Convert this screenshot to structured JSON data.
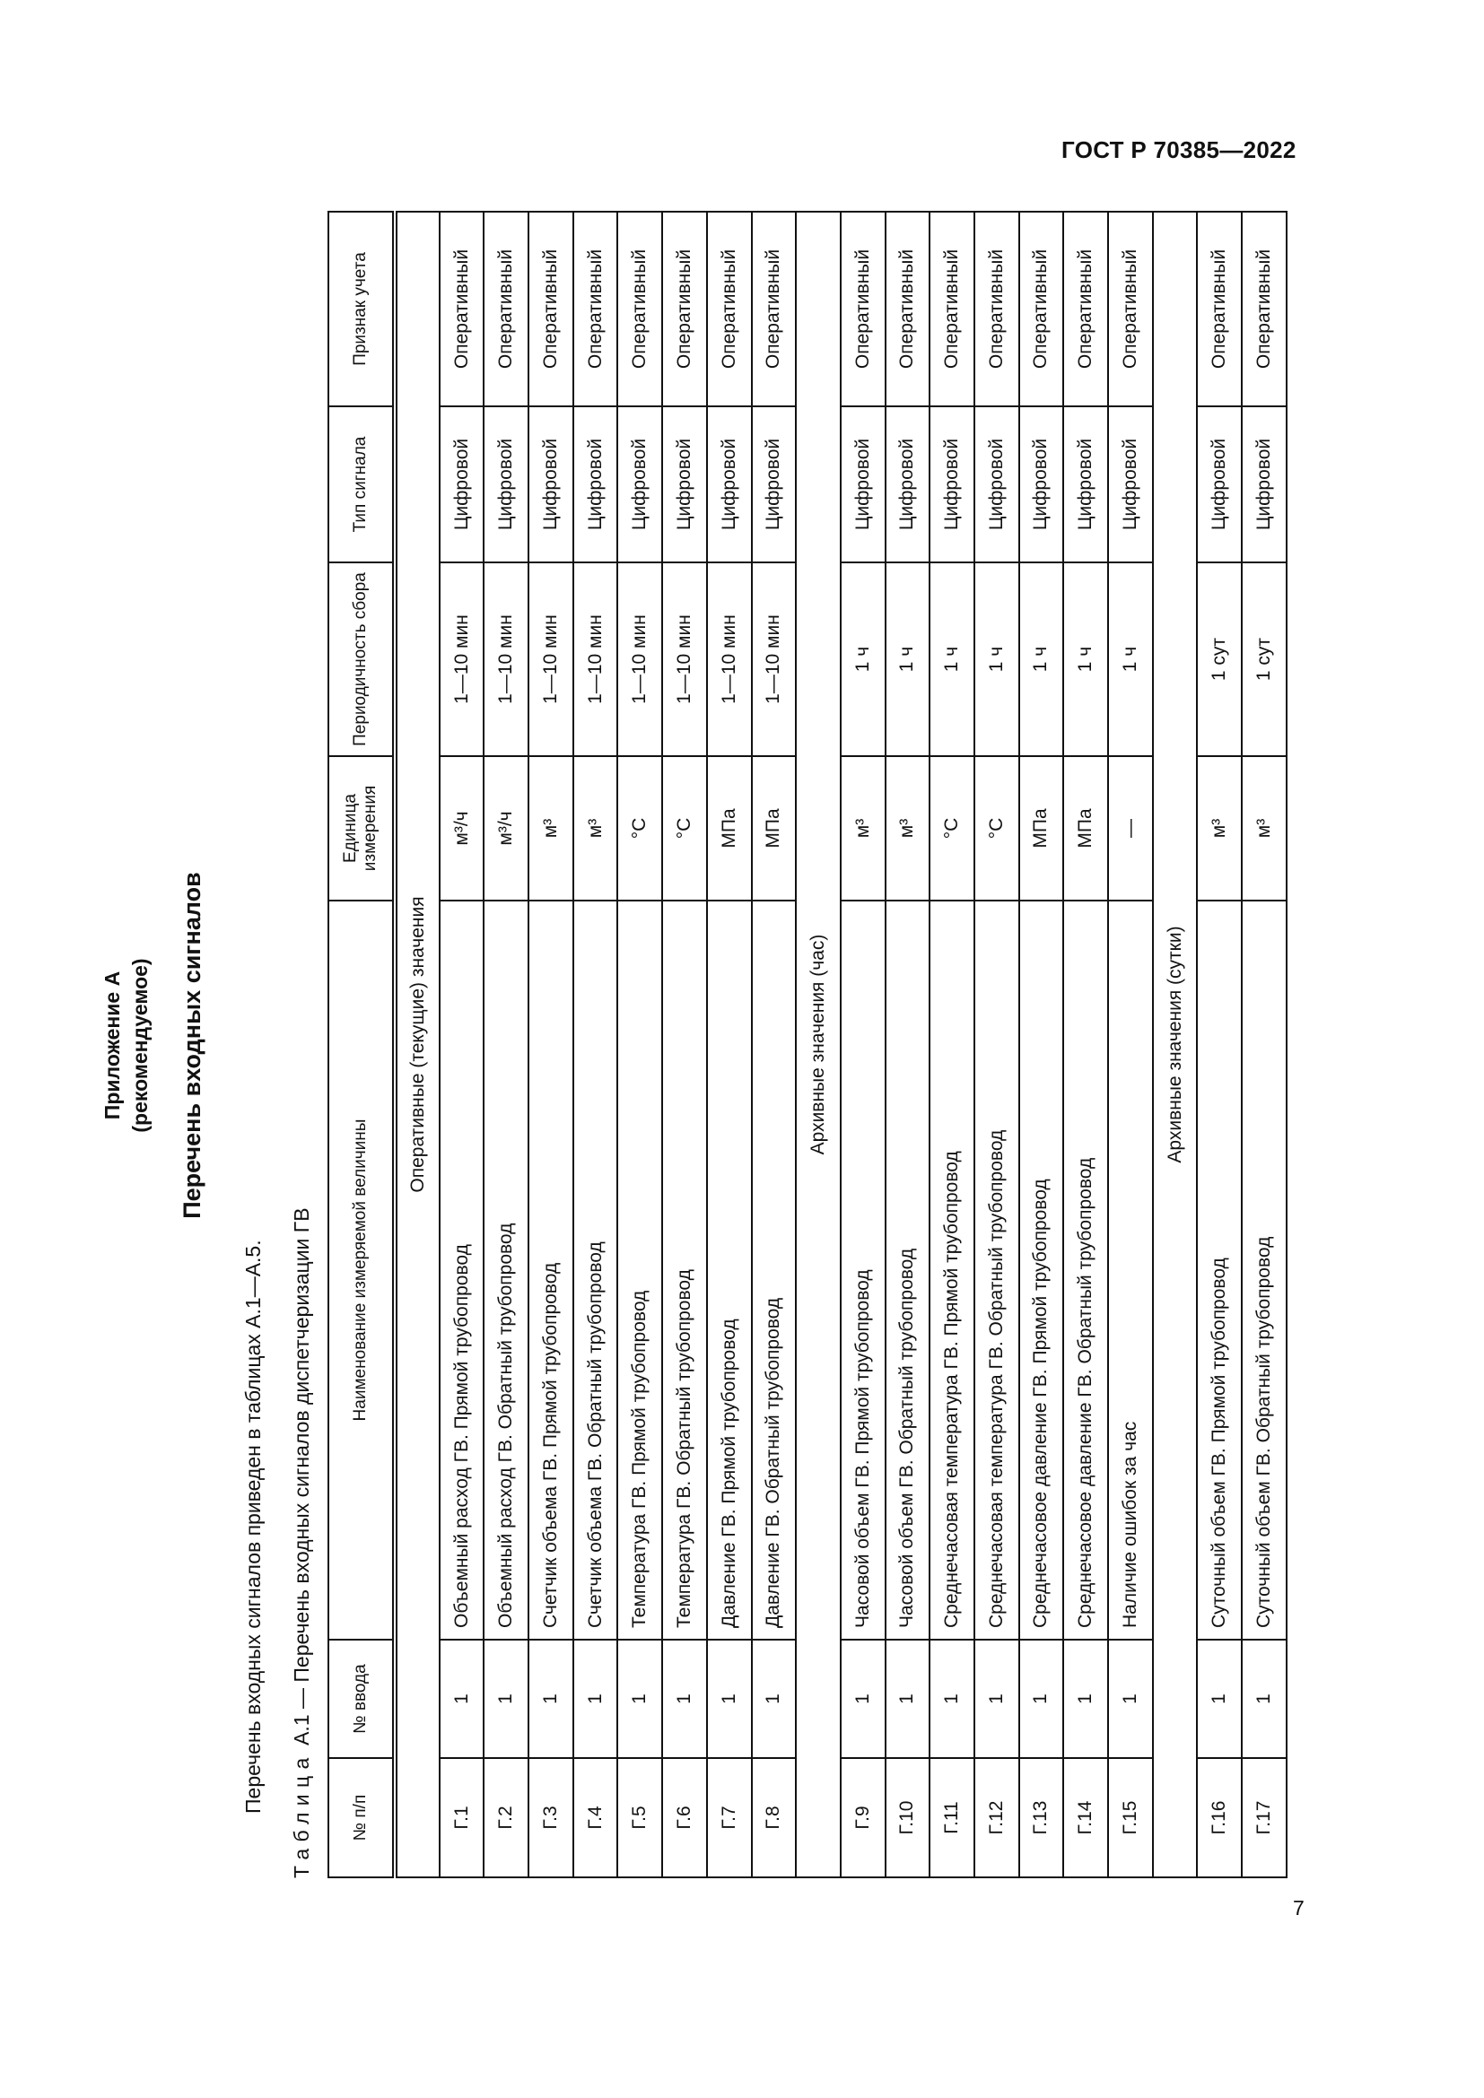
{
  "header": {
    "doc_code": "ГОСТ Р 70385—2022"
  },
  "page_number": "7",
  "annex": {
    "title": "Приложение А",
    "status": "(рекомендуемое)",
    "heading": "Перечень входных сигналов",
    "intro": "Перечень входных сигналов приведен в таблицах А.1—А.5.",
    "caption_word": "Таблица",
    "caption_rest": "А.1 — Перечень входных сигналов диспетчеризации ГВ"
  },
  "table": {
    "columns": [
      "№ п/п",
      "№ ввода",
      "Наименование измеряемой величины",
      "Единица измерения",
      "Периодичность сбора",
      "Тип сигнала",
      "Признак учета"
    ],
    "sections": [
      {
        "title": "Оперативные (текущие) значения",
        "rows": [
          [
            "Г.1",
            "1",
            "Объемный расход ГВ. Прямой трубопровод",
            "м³/ч",
            "1—10 мин",
            "Цифровой",
            "Оперативный"
          ],
          [
            "Г.2",
            "1",
            "Объемный расход ГВ. Обратный трубопровод",
            "м³/ч",
            "1—10 мин",
            "Цифровой",
            "Оперативный"
          ],
          [
            "Г.3",
            "1",
            "Счетчик объема ГВ. Прямой трубопровод",
            "м³",
            "1—10 мин",
            "Цифровой",
            "Оперативный"
          ],
          [
            "Г.4",
            "1",
            "Счетчик объема ГВ. Обратный трубопровод",
            "м³",
            "1—10 мин",
            "Цифровой",
            "Оперативный"
          ],
          [
            "Г.5",
            "1",
            "Температура ГВ. Прямой трубопровод",
            "°С",
            "1—10 мин",
            "Цифровой",
            "Оперативный"
          ],
          [
            "Г.6",
            "1",
            "Температура ГВ. Обратный трубопровод",
            "°С",
            "1—10 мин",
            "Цифровой",
            "Оперативный"
          ],
          [
            "Г.7",
            "1",
            "Давление ГВ. Прямой трубопровод",
            "МПа",
            "1—10 мин",
            "Цифровой",
            "Оперативный"
          ],
          [
            "Г.8",
            "1",
            "Давление ГВ. Обратный трубопровод",
            "МПа",
            "1—10 мин",
            "Цифровой",
            "Оперативный"
          ]
        ]
      },
      {
        "title": "Архивные значения (час)",
        "rows": [
          [
            "Г.9",
            "1",
            "Часовой объем ГВ. Прямой трубопровод",
            "м³",
            "1 ч",
            "Цифровой",
            "Оперативный"
          ],
          [
            "Г.10",
            "1",
            "Часовой объем ГВ. Обратный трубопровод",
            "м³",
            "1 ч",
            "Цифровой",
            "Оперативный"
          ],
          [
            "Г.11",
            "1",
            "Среднечасовая температура ГВ. Прямой трубопровод",
            "°С",
            "1 ч",
            "Цифровой",
            "Оперативный"
          ],
          [
            "Г.12",
            "1",
            "Среднечасовая температура ГВ. Обратный трубопровод",
            "°С",
            "1 ч",
            "Цифровой",
            "Оперативный"
          ],
          [
            "Г.13",
            "1",
            "Среднечасовое давление ГВ. Прямой трубопровод",
            "МПа",
            "1 ч",
            "Цифровой",
            "Оперативный"
          ],
          [
            "Г.14",
            "1",
            "Среднечасовое давление ГВ. Обратный трубопровод",
            "МПа",
            "1 ч",
            "Цифровой",
            "Оперативный"
          ],
          [
            "Г.15",
            "1",
            "Наличие ошибок за час",
            "—",
            "1 ч",
            "Цифровой",
            "Оперативный"
          ]
        ]
      },
      {
        "title": "Архивные значения (сутки)",
        "rows": [
          [
            "Г.16",
            "1",
            "Суточный объем ГВ. Прямой трубопровод",
            "м³",
            "1 сут",
            "Цифровой",
            "Оперативный"
          ],
          [
            "Г.17",
            "1",
            "Суточный объем ГВ. Обратный трубопровод",
            "м³",
            "1 сут",
            "Цифровой",
            "Оперативный"
          ]
        ]
      }
    ]
  }
}
